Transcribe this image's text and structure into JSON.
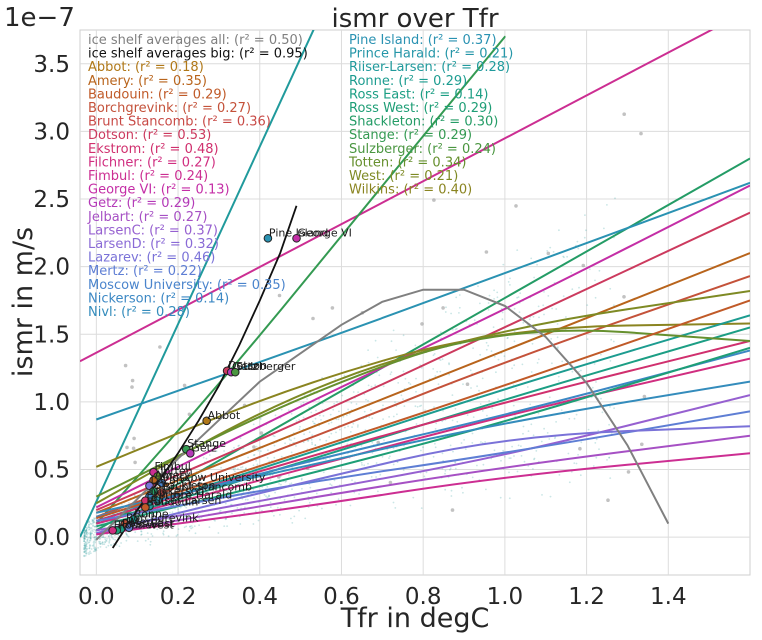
{
  "chart_data": {
    "type": "scatter",
    "title": "ismr over Tfr",
    "xlabel": "Tfr in degC",
    "ylabel": "ismr in m/s",
    "offset_text": "1e−7",
    "xlim": [
      -0.04,
      1.6
    ],
    "ylim": [
      -0.28,
      3.75
    ],
    "xticks": [
      0.0,
      0.2,
      0.4,
      0.6,
      0.8,
      1.0,
      1.2,
      1.4
    ],
    "xtick_labels": [
      "0.0",
      "0.2",
      "0.4",
      "0.6",
      "0.8",
      "1.0",
      "1.2",
      "1.4"
    ],
    "yticks": [
      0.0,
      0.5,
      1.0,
      1.5,
      2.0,
      2.5,
      3.0,
      3.5
    ],
    "ytick_labels": [
      "0.0",
      "0.5",
      "1.0",
      "1.5",
      "2.0",
      "2.5",
      "3.0",
      "3.5"
    ],
    "grid": true,
    "legend_placement": "top-left, two columns",
    "legend_col1": [
      {
        "label": "ice shelf averages all: (r² = 0.50)",
        "color": "#808080"
      },
      {
        "label": "ice shelf averages big: (r² = 0.95)",
        "color": "#111111"
      },
      {
        "label": "Abbot: (r² = 0.18)",
        "color": "#b07818"
      },
      {
        "label": "Amery: (r² = 0.35)",
        "color": "#b8641c"
      },
      {
        "label": "Baudouin: (r² = 0.29)",
        "color": "#c05a28"
      },
      {
        "label": "Borchgrevink: (r² = 0.27)",
        "color": "#c4523a"
      },
      {
        "label": "Brunt Stancomb: (r² = 0.36)",
        "color": "#c84a46"
      },
      {
        "label": "Dotson: (r² = 0.53)",
        "color": "#cc3a5e"
      },
      {
        "label": "Ekstrom: (r² = 0.48)",
        "color": "#d0306e"
      },
      {
        "label": "Filchner: (r² = 0.27)",
        "color": "#d02e80"
      },
      {
        "label": "Fimbul: (r² = 0.24)",
        "color": "#cc2e92"
      },
      {
        "label": "George VI: (r² = 0.13)",
        "color": "#c42ea6"
      },
      {
        "label": "Getz: (r² = 0.29)",
        "color": "#b43ab8"
      },
      {
        "label": "Jelbart: (r² = 0.27)",
        "color": "#a650c4"
      },
      {
        "label": "LarsenC: (r² = 0.37)",
        "color": "#9660d0"
      },
      {
        "label": "LarsenD: (r² = 0.32)",
        "color": "#8a6ad6"
      },
      {
        "label": "Lazarev: (r² = 0.46)",
        "color": "#7a72d8"
      },
      {
        "label": "Mertz: (r² = 0.22)",
        "color": "#5e7ed4"
      },
      {
        "label": "Moscow University: (r² = 0.35)",
        "color": "#4a84cc"
      },
      {
        "label": "Nickerson: (r² = 0.14)",
        "color": "#3c88c4"
      },
      {
        "label": "Nivl: (r² = 0.28)",
        "color": "#348cbc"
      }
    ],
    "legend_col2": [
      {
        "label": "Pine Island: (r² = 0.37)",
        "color": "#2a92b2"
      },
      {
        "label": "Prince Harald: (r² = 0.21)",
        "color": "#2596a8"
      },
      {
        "label": "Riiser-Larsen: (r² = 0.28)",
        "color": "#209a9c"
      },
      {
        "label": "Ronne: (r² = 0.29)",
        "color": "#1c9c90"
      },
      {
        "label": "Ross East: (r² = 0.14)",
        "color": "#1c9e84"
      },
      {
        "label": "Ross West: (r² = 0.29)",
        "color": "#1e9e76"
      },
      {
        "label": "Shackleton: (r² = 0.30)",
        "color": "#249c66"
      },
      {
        "label": "Stange: (r² = 0.29)",
        "color": "#349a52"
      },
      {
        "label": "Sulzberger: (r² = 0.24)",
        "color": "#4a9640"
      },
      {
        "label": "Totten: (r² = 0.34)",
        "color": "#66902e"
      },
      {
        "label": "West: (r² = 0.21)",
        "color": "#7e8a24"
      },
      {
        "label": "Wilkins: (r² = 0.40)",
        "color": "#8a8420"
      }
    ],
    "avg_all_curve": {
      "name": "ice shelf averages all",
      "color": "#808080",
      "x": [
        0.0,
        0.2,
        0.4,
        0.6,
        0.7,
        0.8,
        0.9,
        1.0,
        1.1,
        1.2,
        1.3,
        1.4
      ],
      "y": [
        -0.02,
        0.58,
        1.15,
        1.57,
        1.74,
        1.83,
        1.83,
        1.71,
        1.48,
        1.14,
        0.68,
        0.1
      ]
    },
    "avg_big_curve": {
      "name": "ice shelf averages big",
      "color": "#111111",
      "x": [
        0.04,
        0.1,
        0.15,
        0.2,
        0.25,
        0.3,
        0.35,
        0.4,
        0.45,
        0.49
      ],
      "y": [
        -0.08,
        0.2,
        0.4,
        0.62,
        0.86,
        1.12,
        1.42,
        1.75,
        2.1,
        2.45
      ]
    },
    "fit_lines": [
      {
        "color": "#cc2e92",
        "x": [
          -0.04,
          1.6
        ],
        "y": [
          1.3,
          3.9
        ]
      },
      {
        "color": "#209a9c",
        "x": [
          -0.04,
          0.6
        ],
        "y": [
          0.0,
          4.2
        ]
      },
      {
        "color": "#249c66",
        "x": [
          0.0,
          1.6
        ],
        "y": [
          0.05,
          2.8
        ]
      },
      {
        "color": "#349a52",
        "x": [
          0.0,
          0.35,
          0.7,
          1.0
        ],
        "y": [
          0.1,
          1.3,
          2.6,
          3.7
        ]
      },
      {
        "color": "#2a92b2",
        "x": [
          0.0,
          0.5,
          1.0,
          1.6
        ],
        "y": [
          0.87,
          1.4,
          1.95,
          2.62
        ]
      },
      {
        "color": "#c42ea6",
        "x": [
          0.0,
          0.5,
          1.0,
          1.6
        ],
        "y": [
          0.22,
          0.97,
          1.68,
          2.6
        ]
      },
      {
        "color": "#cc3a5e",
        "x": [
          0.0,
          0.5,
          1.0,
          1.6
        ],
        "y": [
          0.2,
          0.85,
          1.55,
          2.4
        ]
      },
      {
        "color": "#b8641c",
        "x": [
          0.0,
          0.5,
          1.0,
          1.6
        ],
        "y": [
          0.18,
          0.78,
          1.38,
          2.1
        ]
      },
      {
        "color": "#c4523a",
        "x": [
          0.0,
          0.5,
          1.0,
          1.6
        ],
        "y": [
          0.15,
          0.7,
          1.3,
          1.93
        ]
      },
      {
        "color": "#7e8a24",
        "x": [
          0.0,
          0.5,
          1.0,
          1.6
        ],
        "y": [
          0.25,
          1.1,
          1.55,
          1.82
        ]
      },
      {
        "color": "#8a8420",
        "x": [
          0.0,
          0.5,
          1.0,
          1.6
        ],
        "y": [
          0.52,
          1.14,
          1.55,
          1.58
        ]
      },
      {
        "color": "#1c9c90",
        "x": [
          0.0,
          0.5,
          1.0,
          1.6
        ],
        "y": [
          0.12,
          0.6,
          1.1,
          1.64
        ]
      },
      {
        "color": "#1c9e84",
        "x": [
          0.0,
          0.5,
          1.0,
          1.6
        ],
        "y": [
          0.1,
          0.55,
          1.02,
          1.55
        ]
      },
      {
        "color": "#d0306e",
        "x": [
          0.0,
          0.5,
          1.0,
          1.6
        ],
        "y": [
          0.12,
          0.58,
          1.0,
          1.45
        ]
      },
      {
        "color": "#d02e80",
        "x": [
          0.0,
          0.5,
          1.0,
          1.6
        ],
        "y": [
          0.1,
          0.5,
          0.9,
          1.32
        ]
      },
      {
        "color": "#3c88c4",
        "x": [
          0.0,
          0.5,
          1.0,
          1.6
        ],
        "y": [
          0.15,
          0.55,
          0.9,
          1.38
        ]
      },
      {
        "color": "#1e9e76",
        "x": [
          0.0,
          0.5,
          1.0,
          1.6
        ],
        "y": [
          0.08,
          0.45,
          0.85,
          1.4
        ]
      },
      {
        "color": "#9660d0",
        "x": [
          0.0,
          0.5,
          1.0,
          1.6
        ],
        "y": [
          0.05,
          0.32,
          0.6,
          1.05
        ]
      },
      {
        "color": "#5e7ed4",
        "x": [
          0.0,
          0.5,
          1.0,
          1.6
        ],
        "y": [
          0.12,
          0.4,
          0.62,
          0.93
        ]
      },
      {
        "color": "#7a72d8",
        "x": [
          0.0,
          0.5,
          1.0,
          1.6
        ],
        "y": [
          0.03,
          0.4,
          0.75,
          0.82
        ]
      },
      {
        "color": "#a650c4",
        "x": [
          0.0,
          0.5,
          1.0,
          1.6
        ],
        "y": [
          0.02,
          0.28,
          0.52,
          0.75
        ]
      },
      {
        "color": "#cc2e92",
        "x": [
          0.0,
          0.5,
          1.0,
          1.6
        ],
        "y": [
          0.02,
          0.22,
          0.45,
          0.62
        ]
      },
      {
        "color": "#348cbc",
        "x": [
          0.0,
          0.5,
          1.0,
          1.6
        ],
        "y": [
          0.18,
          0.52,
          0.85,
          1.15
        ]
      },
      {
        "color": "#66902e",
        "x": [
          0.0,
          0.5,
          1.0,
          1.6
        ],
        "y": [
          0.3,
          1.05,
          1.58,
          1.45
        ]
      },
      {
        "color": "#c05a28",
        "x": [
          0.0,
          0.5,
          1.0,
          1.6
        ],
        "y": [
          0.14,
          0.62,
          1.12,
          1.75
        ]
      }
    ],
    "avg_points": [
      {
        "name": "Pine Island",
        "x": 0.42,
        "y": 2.21,
        "color": "#2a92b2"
      },
      {
        "name": "George VI",
        "x": 0.49,
        "y": 2.21,
        "color": "#c42ea6"
      },
      {
        "name": "Dotson",
        "x": 0.32,
        "y": 1.23,
        "color": "#cc3a5e"
      },
      {
        "name": "Getz",
        "x": 0.33,
        "y": 1.22,
        "color": "#b43ab8"
      },
      {
        "name": "Sulzberger",
        "x": 0.34,
        "y": 1.22,
        "color": "#4a9640"
      },
      {
        "name": "Abbot",
        "x": 0.27,
        "y": 0.86,
        "color": "#b07818"
      },
      {
        "name": "Stange",
        "x": 0.22,
        "y": 0.65,
        "color": "#349a52"
      },
      {
        "name": "Getz",
        "x": 0.23,
        "y": 0.62,
        "color": "#b43ab8"
      },
      {
        "name": "Fimbul",
        "x": 0.14,
        "y": 0.48,
        "color": "#cc2e92"
      },
      {
        "name": "Totten",
        "x": 0.15,
        "y": 0.45,
        "color": "#66902e"
      },
      {
        "name": "Amery",
        "x": 0.14,
        "y": 0.42,
        "color": "#b8641c"
      },
      {
        "name": "Moscow University",
        "x": 0.16,
        "y": 0.4,
        "color": "#4a84cc"
      },
      {
        "name": "Lazarev",
        "x": 0.13,
        "y": 0.38,
        "color": "#7a72d8"
      },
      {
        "name": "Shackleton",
        "x": 0.14,
        "y": 0.34,
        "color": "#249c66"
      },
      {
        "name": "Brunt Stancomb",
        "x": 0.16,
        "y": 0.33,
        "color": "#c84a46"
      },
      {
        "name": "Nickerson",
        "x": 0.13,
        "y": 0.3,
        "color": "#3c88c4"
      },
      {
        "name": "Ekstrom",
        "x": 0.12,
        "y": 0.27,
        "color": "#d0306e"
      },
      {
        "name": "Prince Harald",
        "x": 0.15,
        "y": 0.27,
        "color": "#2596a8"
      },
      {
        "name": "Riiser-Larsen",
        "x": 0.13,
        "y": 0.23,
        "color": "#209a9c"
      },
      {
        "name": "Baudouin",
        "x": 0.12,
        "y": 0.22,
        "color": "#c05a28"
      },
      {
        "name": "Ronne",
        "x": 0.09,
        "y": 0.13,
        "color": "#1c9c90"
      },
      {
        "name": "Borchgrevink",
        "x": 0.07,
        "y": 0.1,
        "color": "#c4523a"
      },
      {
        "name": "Mertz",
        "x": 0.08,
        "y": 0.07,
        "color": "#5e7ed4"
      },
      {
        "name": "Ross East",
        "x": 0.06,
        "y": 0.06,
        "color": "#1c9e84"
      },
      {
        "name": "Ross West",
        "x": 0.05,
        "y": 0.05,
        "color": "#1e9e76"
      },
      {
        "name": "Filchner",
        "x": 0.04,
        "y": 0.05,
        "color": "#d02e80"
      }
    ],
    "scatter_color": "#2a9a9a",
    "outlier_color": "#9a9a9a"
  }
}
